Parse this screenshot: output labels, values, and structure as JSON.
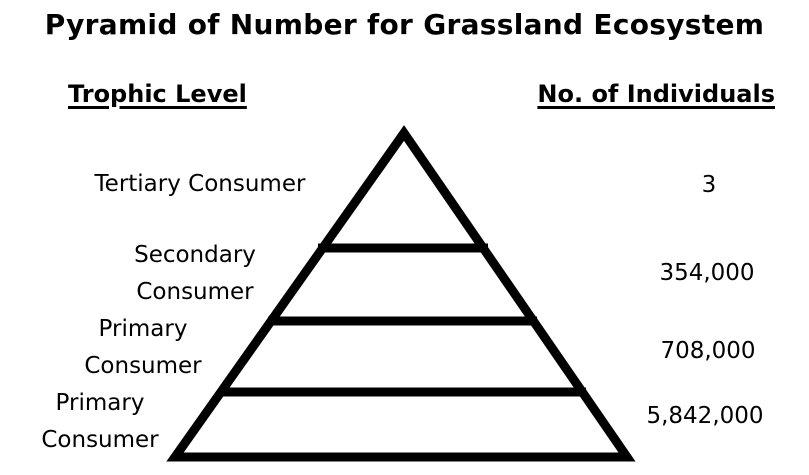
{
  "title": "Pyramid of Number for Grassland Ecosystem",
  "headers": {
    "left": "Trophic Level",
    "right": "No. of Individuals"
  },
  "levels": [
    {
      "label": [
        "Tertiary Consumer"
      ],
      "value": "3"
    },
    {
      "label": [
        "Secondary",
        "Consumer"
      ],
      "value": "354,000"
    },
    {
      "label": [
        "Primary",
        "Consumer"
      ],
      "value": "708,000"
    },
    {
      "label": [
        "Primary",
        "Consumer"
      ],
      "value": "5,842,000"
    }
  ]
}
